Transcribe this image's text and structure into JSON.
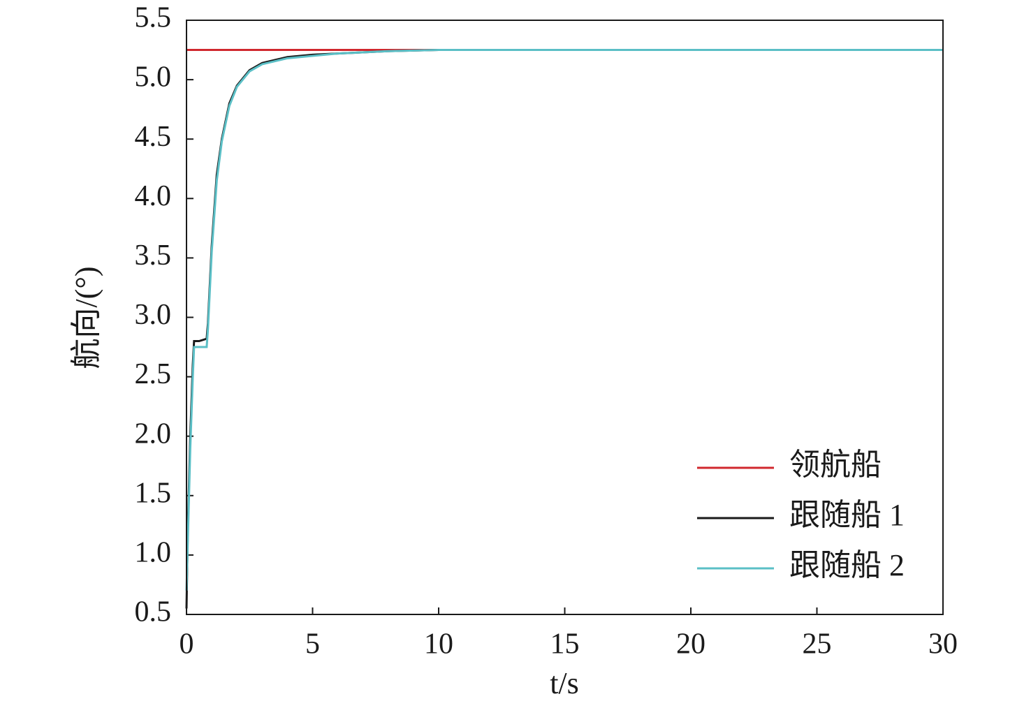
{
  "chart_data": {
    "type": "line",
    "x_label": "t/s",
    "y_label": "航向/(°)",
    "x": [
      0,
      0.05,
      0.15,
      0.25,
      0.3,
      0.5,
      0.8,
      0.85,
      1.0,
      1.2,
      1.4,
      1.7,
      2.0,
      2.5,
      3.0,
      4.0,
      5.0,
      6.0,
      8.0,
      10.0,
      15,
      20,
      25,
      30
    ],
    "series": [
      {
        "name": "领航船",
        "color": "#d0282e",
        "values": [
          5.25,
          5.25,
          5.25,
          5.25,
          5.25,
          5.25,
          5.25,
          5.25,
          5.25,
          5.25,
          5.25,
          5.25,
          5.25,
          5.25,
          5.25,
          5.25,
          5.25,
          5.25,
          5.25,
          5.25,
          5.25,
          5.25,
          5.25,
          5.25
        ]
      },
      {
        "name": "跟随船 1",
        "color": "#1a1a1a",
        "values": [
          0.55,
          1.2,
          2.0,
          2.6,
          2.8,
          2.8,
          2.82,
          2.95,
          3.6,
          4.2,
          4.5,
          4.8,
          4.95,
          5.08,
          5.14,
          5.19,
          5.21,
          5.22,
          5.24,
          5.25,
          5.25,
          5.25,
          5.25,
          5.25
        ]
      },
      {
        "name": "跟随船 2",
        "color": "#5bbfc6",
        "values": [
          0.7,
          1.1,
          1.9,
          2.5,
          2.75,
          2.75,
          2.75,
          2.9,
          3.55,
          4.15,
          4.48,
          4.78,
          4.94,
          5.07,
          5.13,
          5.18,
          5.2,
          5.22,
          5.24,
          5.25,
          5.25,
          5.25,
          5.25,
          5.25
        ]
      }
    ],
    "xlim": [
      0,
      30
    ],
    "xticks": [
      0,
      5,
      10,
      15,
      20,
      25,
      30
    ],
    "ylim": [
      0.5,
      5.5
    ],
    "yticks": [
      0.5,
      {
        "value": 1,
        "label": "1.0"
      },
      1.5,
      {
        "value": 2,
        "label": "2.0"
      },
      2.5,
      {
        "value": 3,
        "label": "3.0"
      },
      3.5,
      {
        "value": 4,
        "label": "4.0"
      },
      4.5,
      {
        "value": 5,
        "label": "5.0"
      },
      5.5
    ],
    "legend": "lower right"
  }
}
